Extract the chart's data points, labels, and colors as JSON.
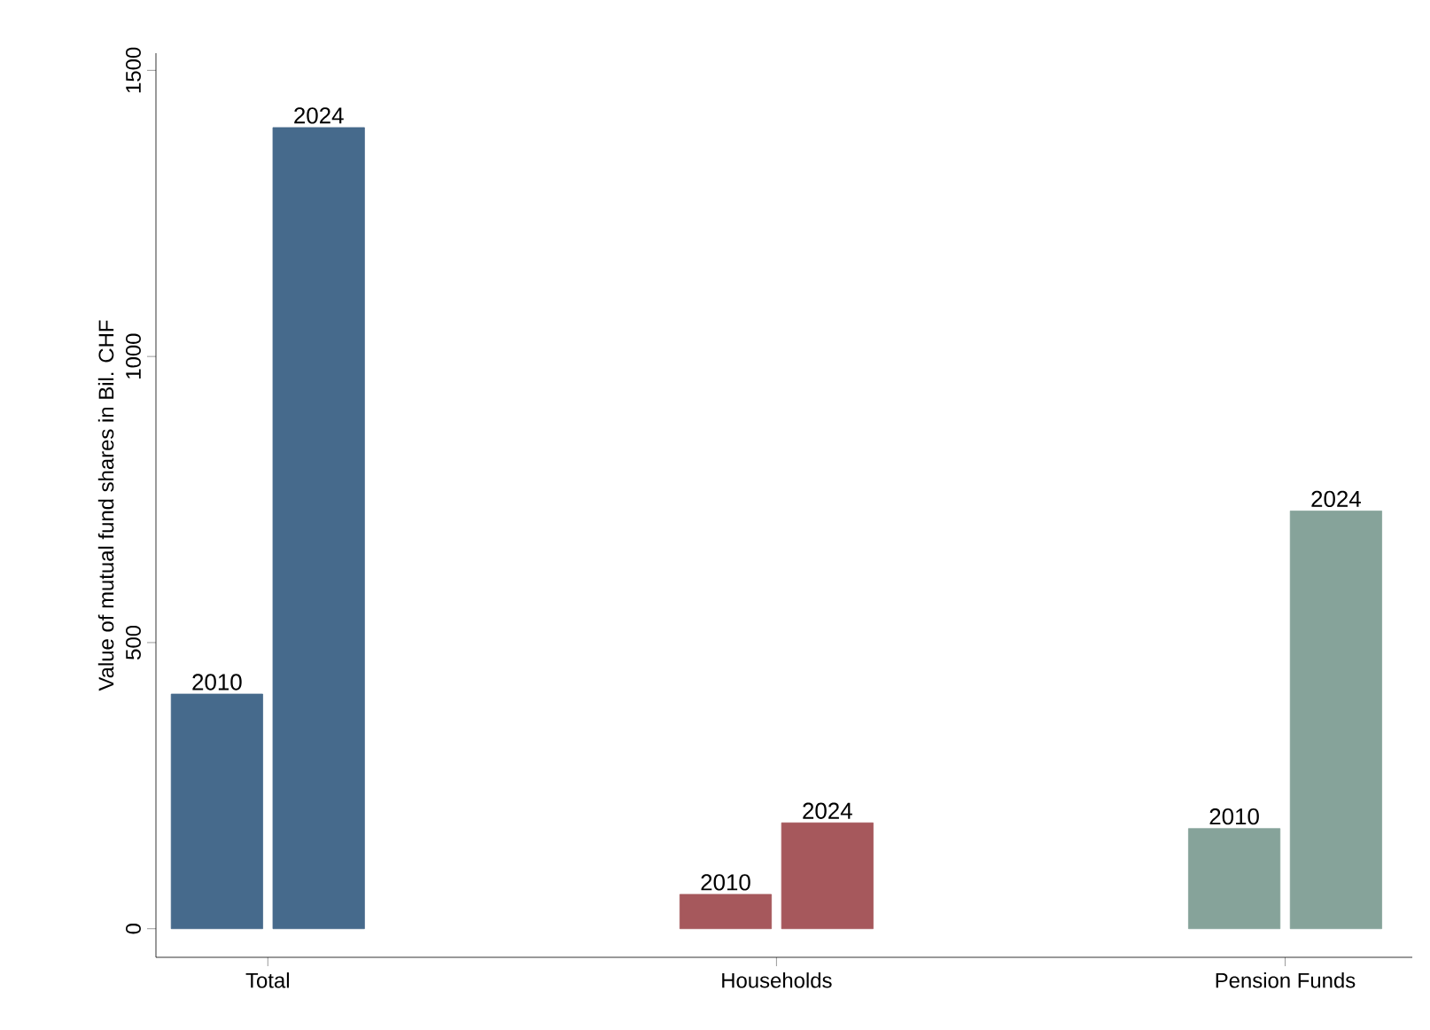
{
  "chart_data": {
    "type": "bar",
    "ylabel": "Value of mutual fund shares in Bil. CHF",
    "categories": [
      "Total",
      "Households",
      "Pension Funds"
    ],
    "series": [
      {
        "name": "2010",
        "values": [
          410,
          60,
          175
        ],
        "colors": [
          "#466a8c",
          "#a6585c",
          "#86a39a"
        ]
      },
      {
        "name": "2024",
        "values": [
          1400,
          185,
          730
        ],
        "colors": [
          "#466a8c",
          "#a6585c",
          "#86a39a"
        ]
      }
    ],
    "ylim": [
      -50,
      1530
    ],
    "yticks": [
      0,
      500,
      1000,
      1500
    ]
  }
}
